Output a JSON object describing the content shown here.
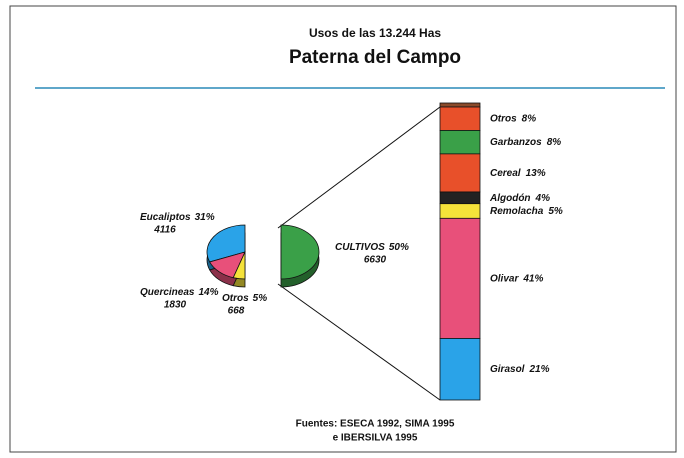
{
  "chart_data": {
    "type": "pie",
    "title": "Usos de las 13.244 Has",
    "subtitle": "Paterna del Campo",
    "categories": [
      "Eucaliptos",
      "Quercineas",
      "Otros",
      "CULTIVOS"
    ],
    "values": [
      31,
      14,
      5,
      50
    ],
    "value_labels": [
      "31%",
      "14%",
      "5%",
      "50%"
    ],
    "counts": [
      4116,
      1830,
      668,
      6630
    ],
    "colors": [
      "#2aa3e8",
      "#e8507a",
      "#f5e23a",
      "#3aa048"
    ],
    "breakdown": {
      "type": "bar",
      "categories": [
        "Otros",
        "Garbanzos",
        "Cereal",
        "Algodón",
        "Remolacha",
        "Olivar",
        "Girasol"
      ],
      "values": [
        8,
        8,
        13,
        4,
        5,
        41,
        21
      ],
      "value_labels": [
        "8%",
        "8%",
        "13%",
        "4%",
        "5%",
        "41%",
        "21%"
      ],
      "colors": [
        "#e8502a",
        "#3aa048",
        "#e8502a",
        "#222222",
        "#f5e23a",
        "#e8507a",
        "#2aa3e8"
      ]
    },
    "source": [
      "Fuentes: ESECA 1992, SIMA 1995",
      "e IBERSILVA 1995"
    ]
  }
}
